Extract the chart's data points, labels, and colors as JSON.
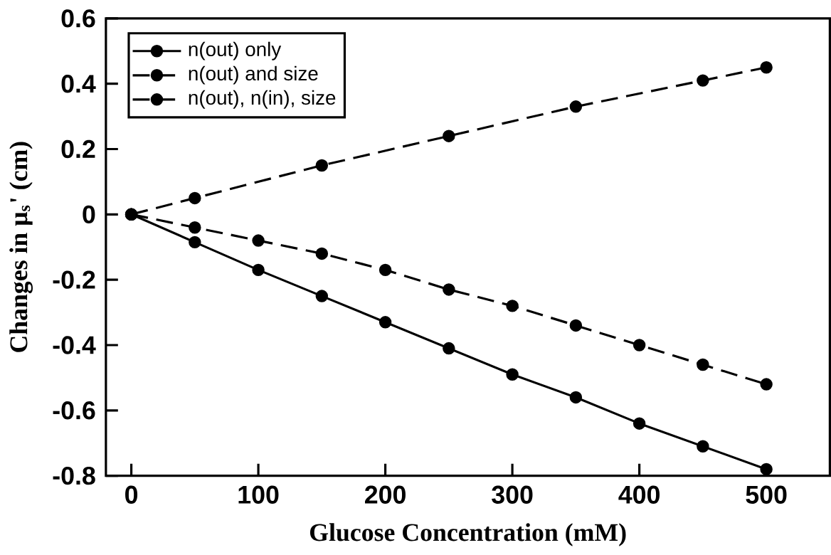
{
  "chart_data": {
    "type": "line",
    "xlabel": "Glucose Concentration (mM)",
    "ylabel": "Changes in μ$_{s}$' (cm)",
    "xlim": [
      -20,
      550
    ],
    "ylim": [
      -0.8,
      0.6
    ],
    "xticks": [
      0,
      100,
      200,
      300,
      400,
      500
    ],
    "yticks": [
      -0.8,
      -0.6,
      -0.4,
      -0.2,
      0,
      0.2,
      0.4,
      0.6
    ],
    "legend": "top left",
    "marker": "circle",
    "grid": false,
    "x": [
      0,
      50,
      100,
      150,
      200,
      250,
      300,
      350,
      400,
      450,
      500
    ],
    "series": [
      {
        "name": "n(out) only",
        "color": "#000000",
        "line_style": "solid",
        "values": [
          0,
          -0.085,
          -0.17,
          -0.25,
          -0.33,
          -0.41,
          -0.49,
          -0.56,
          -0.64,
          -0.71,
          -0.78
        ]
      },
      {
        "name": "n(out) and size",
        "color": "#000000",
        "line_style": "dashed",
        "values": [
          0,
          -0.04,
          -0.08,
          -0.12,
          -0.17,
          -0.23,
          -0.28,
          -0.34,
          -0.4,
          -0.46,
          -0.52
        ]
      },
      {
        "name": "n(out), n(in), size",
        "color": "#000000",
        "line_style": "dashed",
        "x": [
          0,
          50,
          150,
          250,
          350,
          450,
          500
        ],
        "values": [
          0,
          0.05,
          0.15,
          0.24,
          0.33,
          0.41,
          0.45
        ]
      }
    ]
  }
}
